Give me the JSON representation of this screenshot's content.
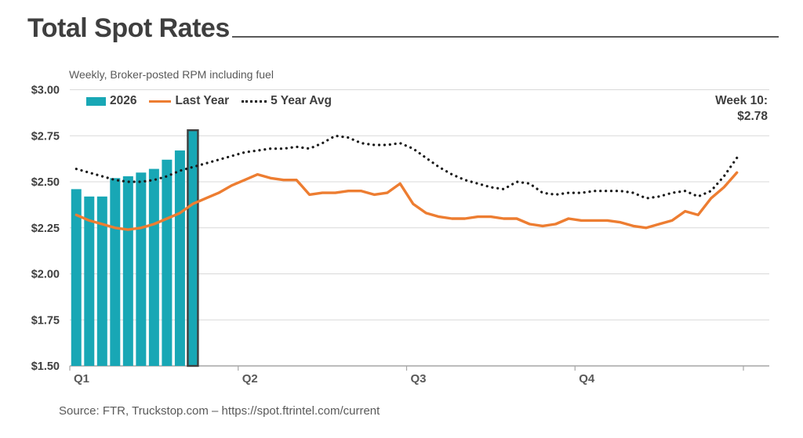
{
  "header": {
    "title": "Total Spot Rates"
  },
  "subtitle": "Weekly, Broker-posted RPM including fuel",
  "source": "Source: FTR, Truckstop.com – https://spot.ftrintel.com/current",
  "colors": {
    "teal": "#18a7b5",
    "orange": "#ed7d31",
    "dots": "#1a1a1a",
    "grid": "#d9d9d9",
    "axis": "#a6a6a6",
    "text_dark": "#3f3f3f",
    "text_gray": "#595959"
  },
  "chart_data": {
    "type": "bar",
    "title": "Total Spot Rates",
    "subtitle": "Weekly, Broker-posted RPM including fuel",
    "annotation": {
      "lines": [
        "Week 10:",
        "$2.78"
      ]
    },
    "x_axis": {
      "tick_labels": [
        "Q1",
        "Q2",
        "Q3",
        "Q4"
      ],
      "weeks_per_quarter": 13,
      "total_weeks": 52
    },
    "y_axis": {
      "tick_labels": [
        "$3.00",
        "$2.75",
        "$2.50",
        "$2.25",
        "$2.00",
        "$1.75",
        "$1.50"
      ],
      "tick_values": [
        3.0,
        2.75,
        2.5,
        2.25,
        2.0,
        1.75,
        1.5
      ],
      "min": 1.5,
      "max": 3.0,
      "grid": true
    },
    "legend_position": "top-left",
    "series": [
      {
        "name": "2026",
        "type": "bar",
        "weeks": [
          1,
          2,
          3,
          4,
          5,
          6,
          7,
          8,
          9,
          10
        ],
        "values": [
          2.46,
          2.42,
          2.42,
          2.52,
          2.53,
          2.55,
          2.57,
          2.62,
          2.67,
          2.78
        ],
        "highlight_week": 10,
        "highlight_value": 2.78
      },
      {
        "name": "Last Year",
        "type": "line",
        "values": [
          2.32,
          2.29,
          2.27,
          2.25,
          2.24,
          2.25,
          2.27,
          2.3,
          2.33,
          2.38,
          2.41,
          2.44,
          2.48,
          2.51,
          2.54,
          2.52,
          2.51,
          2.51,
          2.43,
          2.44,
          2.44,
          2.45,
          2.45,
          2.43,
          2.44,
          2.49,
          2.38,
          2.33,
          2.31,
          2.3,
          2.3,
          2.31,
          2.31,
          2.3,
          2.3,
          2.27,
          2.26,
          2.27,
          2.3,
          2.29,
          2.29,
          2.29,
          2.28,
          2.26,
          2.25,
          2.27,
          2.29,
          2.34,
          2.32,
          2.41,
          2.47,
          2.55
        ]
      },
      {
        "name": "5 Year Avg",
        "type": "dotted-line",
        "values": [
          2.57,
          2.55,
          2.53,
          2.51,
          2.5,
          2.5,
          2.51,
          2.53,
          2.56,
          2.58,
          2.6,
          2.62,
          2.64,
          2.66,
          2.67,
          2.68,
          2.68,
          2.69,
          2.68,
          2.71,
          2.75,
          2.74,
          2.71,
          2.7,
          2.7,
          2.71,
          2.68,
          2.63,
          2.58,
          2.54,
          2.51,
          2.49,
          2.47,
          2.46,
          2.5,
          2.49,
          2.44,
          2.43,
          2.44,
          2.44,
          2.45,
          2.45,
          2.45,
          2.44,
          2.41,
          2.42,
          2.44,
          2.45,
          2.42,
          2.45,
          2.53,
          2.63
        ]
      }
    ]
  }
}
